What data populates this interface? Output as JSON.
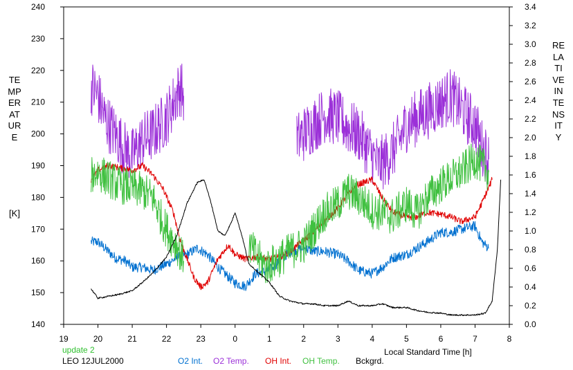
{
  "chart_data": {
    "type": "line",
    "title": "",
    "xlabel": "Local Standard Time [h]",
    "ylabel_left": "TEMPERATURE",
    "ylabel_left_unit": "[K]",
    "ylabel_right": "RELATIVE INTENSITY",
    "x_ticks": [
      "19",
      "20",
      "21",
      "22",
      "23",
      "0",
      "1",
      "2",
      "3",
      "4",
      "5",
      "6",
      "7",
      "8"
    ],
    "x_range": [
      19,
      32
    ],
    "y_left_range": [
      140,
      240
    ],
    "y_left_ticks": [
      140,
      150,
      160,
      170,
      180,
      190,
      200,
      210,
      220,
      230,
      240
    ],
    "y_right_range": [
      0.0,
      3.4
    ],
    "y_right_ticks": [
      "0.0",
      "0.2",
      "0.4",
      "0.6",
      "0.8",
      "1.0",
      "1.2",
      "1.4",
      "1.6",
      "1.8",
      "2.0",
      "2.2",
      "2.4",
      "2.6",
      "2.8",
      "3.0",
      "3.2",
      "3.4"
    ],
    "grid": false,
    "annotations": {
      "update": "update 2",
      "station_date": "LEO 12JUL2000"
    },
    "legend_position": "bottom",
    "series": [
      {
        "name": "O2 Int.",
        "axis": "left",
        "color": "#0070d0",
        "noise": 1.6,
        "x": [
          19.8,
          20.0,
          20.2,
          20.5,
          20.8,
          21.0,
          21.3,
          21.6,
          22.0,
          22.3,
          22.6,
          22.9,
          23.2,
          23.5,
          23.8,
          24.0,
          24.3,
          24.6,
          25.0,
          25.3,
          25.6,
          26.0,
          26.3,
          26.6,
          27.0,
          27.3,
          27.6,
          28.0,
          28.3,
          28.6,
          29.0,
          29.3,
          29.6,
          30.0,
          30.3,
          30.6,
          31.0,
          31.2,
          31.4
        ],
        "y": [
          166,
          166,
          164,
          161,
          160,
          158,
          158,
          157,
          159,
          161,
          162,
          164,
          162,
          158,
          155,
          153,
          152,
          156,
          157,
          160,
          163,
          164,
          163,
          163,
          162,
          160,
          157,
          156,
          158,
          161,
          162,
          164,
          166,
          169,
          169,
          170,
          171,
          166,
          164
        ]
      },
      {
        "name": "O2 Temp.",
        "axis": "left",
        "color": "#9b30d8",
        "noise": 9,
        "x": [
          19.8,
          20.0,
          20.2,
          20.5,
          20.8,
          21.0,
          21.3,
          21.6,
          22.0,
          22.2,
          22.4,
          22.5,
          null,
          25.8,
          26.0,
          26.3,
          26.6,
          27.0,
          27.3,
          27.6,
          27.9,
          28.2,
          28.5,
          28.8,
          29.0,
          29.3,
          29.6,
          30.0,
          30.3,
          30.6,
          30.8,
          31.0,
          31.2,
          31.4
        ],
        "y": [
          215,
          212,
          205,
          200,
          195,
          193,
          198,
          200,
          205,
          210,
          215,
          212,
          null,
          198,
          200,
          203,
          206,
          205,
          202,
          200,
          195,
          190,
          193,
          198,
          203,
          205,
          207,
          210,
          212,
          208,
          205,
          203,
          196,
          192
        ]
      },
      {
        "name": "OH Int.",
        "axis": "right",
        "color": "#e00000",
        "noise": 0.035,
        "x": [
          19.8,
          20.0,
          20.3,
          20.6,
          21.0,
          21.3,
          21.6,
          21.9,
          22.2,
          22.4,
          22.6,
          22.8,
          23.0,
          23.2,
          23.5,
          23.8,
          24.0,
          24.3,
          24.6,
          25.0,
          25.3,
          25.6,
          26.0,
          26.3,
          26.6,
          27.0,
          27.3,
          27.6,
          28.0,
          28.3,
          28.6,
          29.0,
          29.3,
          29.6,
          30.0,
          30.3,
          30.6,
          31.0,
          31.2,
          31.5
        ],
        "y": [
          1.55,
          1.65,
          1.7,
          1.68,
          1.65,
          1.7,
          1.6,
          1.45,
          1.2,
          0.9,
          0.7,
          0.5,
          0.4,
          0.45,
          0.7,
          0.85,
          0.75,
          0.7,
          0.72,
          0.7,
          0.72,
          0.78,
          0.9,
          1.0,
          1.1,
          1.25,
          1.4,
          1.5,
          1.55,
          1.35,
          1.2,
          1.15,
          1.15,
          1.2,
          1.18,
          1.15,
          1.1,
          1.15,
          1.3,
          1.55
        ]
      },
      {
        "name": "OH Temp.",
        "axis": "left",
        "color": "#40c040",
        "noise": 6,
        "x": [
          19.8,
          20.0,
          20.3,
          20.6,
          21.0,
          21.3,
          21.6,
          21.9,
          22.1,
          22.3,
          22.5,
          null,
          24.4,
          24.6,
          24.9,
          25.2,
          25.6,
          26.0,
          26.3,
          26.6,
          27.0,
          27.3,
          27.6,
          28.0,
          28.3,
          28.6,
          29.0,
          29.3,
          29.6,
          30.0,
          30.3,
          30.6,
          31.0,
          31.2,
          31.4
        ],
        "y": [
          187,
          188,
          186,
          184,
          183,
          182,
          180,
          172,
          168,
          165,
          160,
          null,
          165,
          162,
          158,
          160,
          163,
          165,
          170,
          175,
          178,
          182,
          180,
          176,
          175,
          174,
          178,
          175,
          180,
          184,
          186,
          188,
          192,
          190,
          188
        ]
      },
      {
        "name": "Bckgrd.",
        "axis": "right",
        "color": "#000000",
        "noise": 0.008,
        "x": [
          19.8,
          20.0,
          20.3,
          20.6,
          21.0,
          21.3,
          21.6,
          22.0,
          22.3,
          22.6,
          22.9,
          23.1,
          23.3,
          23.5,
          23.7,
          23.9,
          24.0,
          24.2,
          24.4,
          24.7,
          25.0,
          25.3,
          25.6,
          26.0,
          26.3,
          26.6,
          27.0,
          27.3,
          27.6,
          28.0,
          28.3,
          28.6,
          29.0,
          29.3,
          29.6,
          30.0,
          30.3,
          30.6,
          31.0,
          31.3,
          31.5,
          31.65,
          31.75
        ],
        "y": [
          0.38,
          0.28,
          0.3,
          0.32,
          0.36,
          0.45,
          0.55,
          0.72,
          0.95,
          1.3,
          1.52,
          1.55,
          1.3,
          1.0,
          0.95,
          1.1,
          1.2,
          0.95,
          0.65,
          0.55,
          0.45,
          0.3,
          0.25,
          0.22,
          0.22,
          0.2,
          0.2,
          0.25,
          0.2,
          0.2,
          0.22,
          0.18,
          0.18,
          0.15,
          0.13,
          0.12,
          0.1,
          0.1,
          0.1,
          0.12,
          0.25,
          0.8,
          1.55
        ]
      }
    ]
  }
}
